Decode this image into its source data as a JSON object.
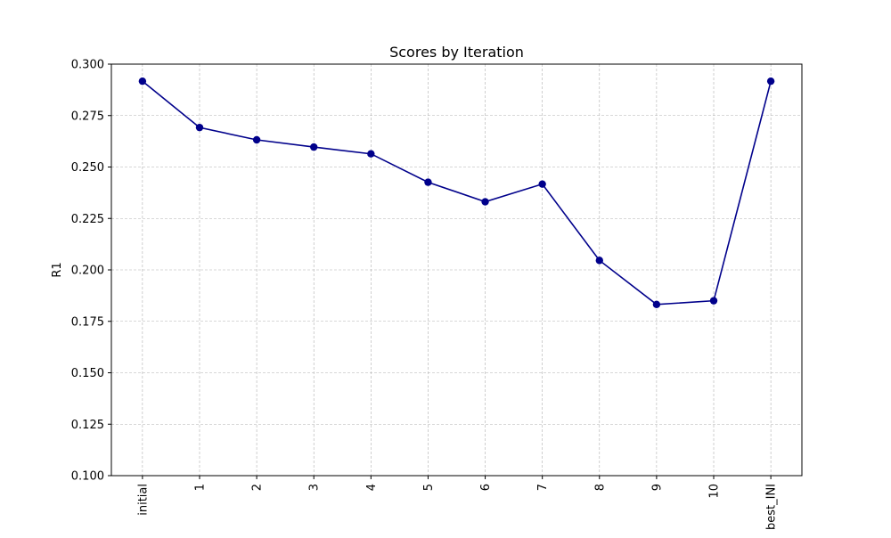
{
  "chart_data": {
    "type": "line",
    "title": "Scores by Iteration",
    "xlabel": "",
    "ylabel": "R1",
    "categories": [
      "initial",
      "1",
      "2",
      "3",
      "4",
      "5",
      "6",
      "7",
      "8",
      "9",
      "10",
      "best_INI"
    ],
    "series": [
      {
        "values": [
          0.2917,
          0.2692,
          0.2632,
          0.2597,
          0.2564,
          0.2426,
          0.2331,
          0.2417,
          0.2046,
          0.1832,
          0.185,
          0.2917
        ]
      }
    ],
    "ylim": [
      0.1,
      0.3
    ],
    "yticks": [
      0.1,
      0.125,
      0.15,
      0.175,
      0.2,
      0.225,
      0.25,
      0.275,
      0.3
    ],
    "ytick_labels": [
      "0.100",
      "0.125",
      "0.150",
      "0.175",
      "0.200",
      "0.225",
      "0.250",
      "0.275",
      "0.300"
    ],
    "grid": true,
    "line_color": "#00008b",
    "marker_color": "#00008b",
    "grid_color": "#b0b0b0"
  }
}
